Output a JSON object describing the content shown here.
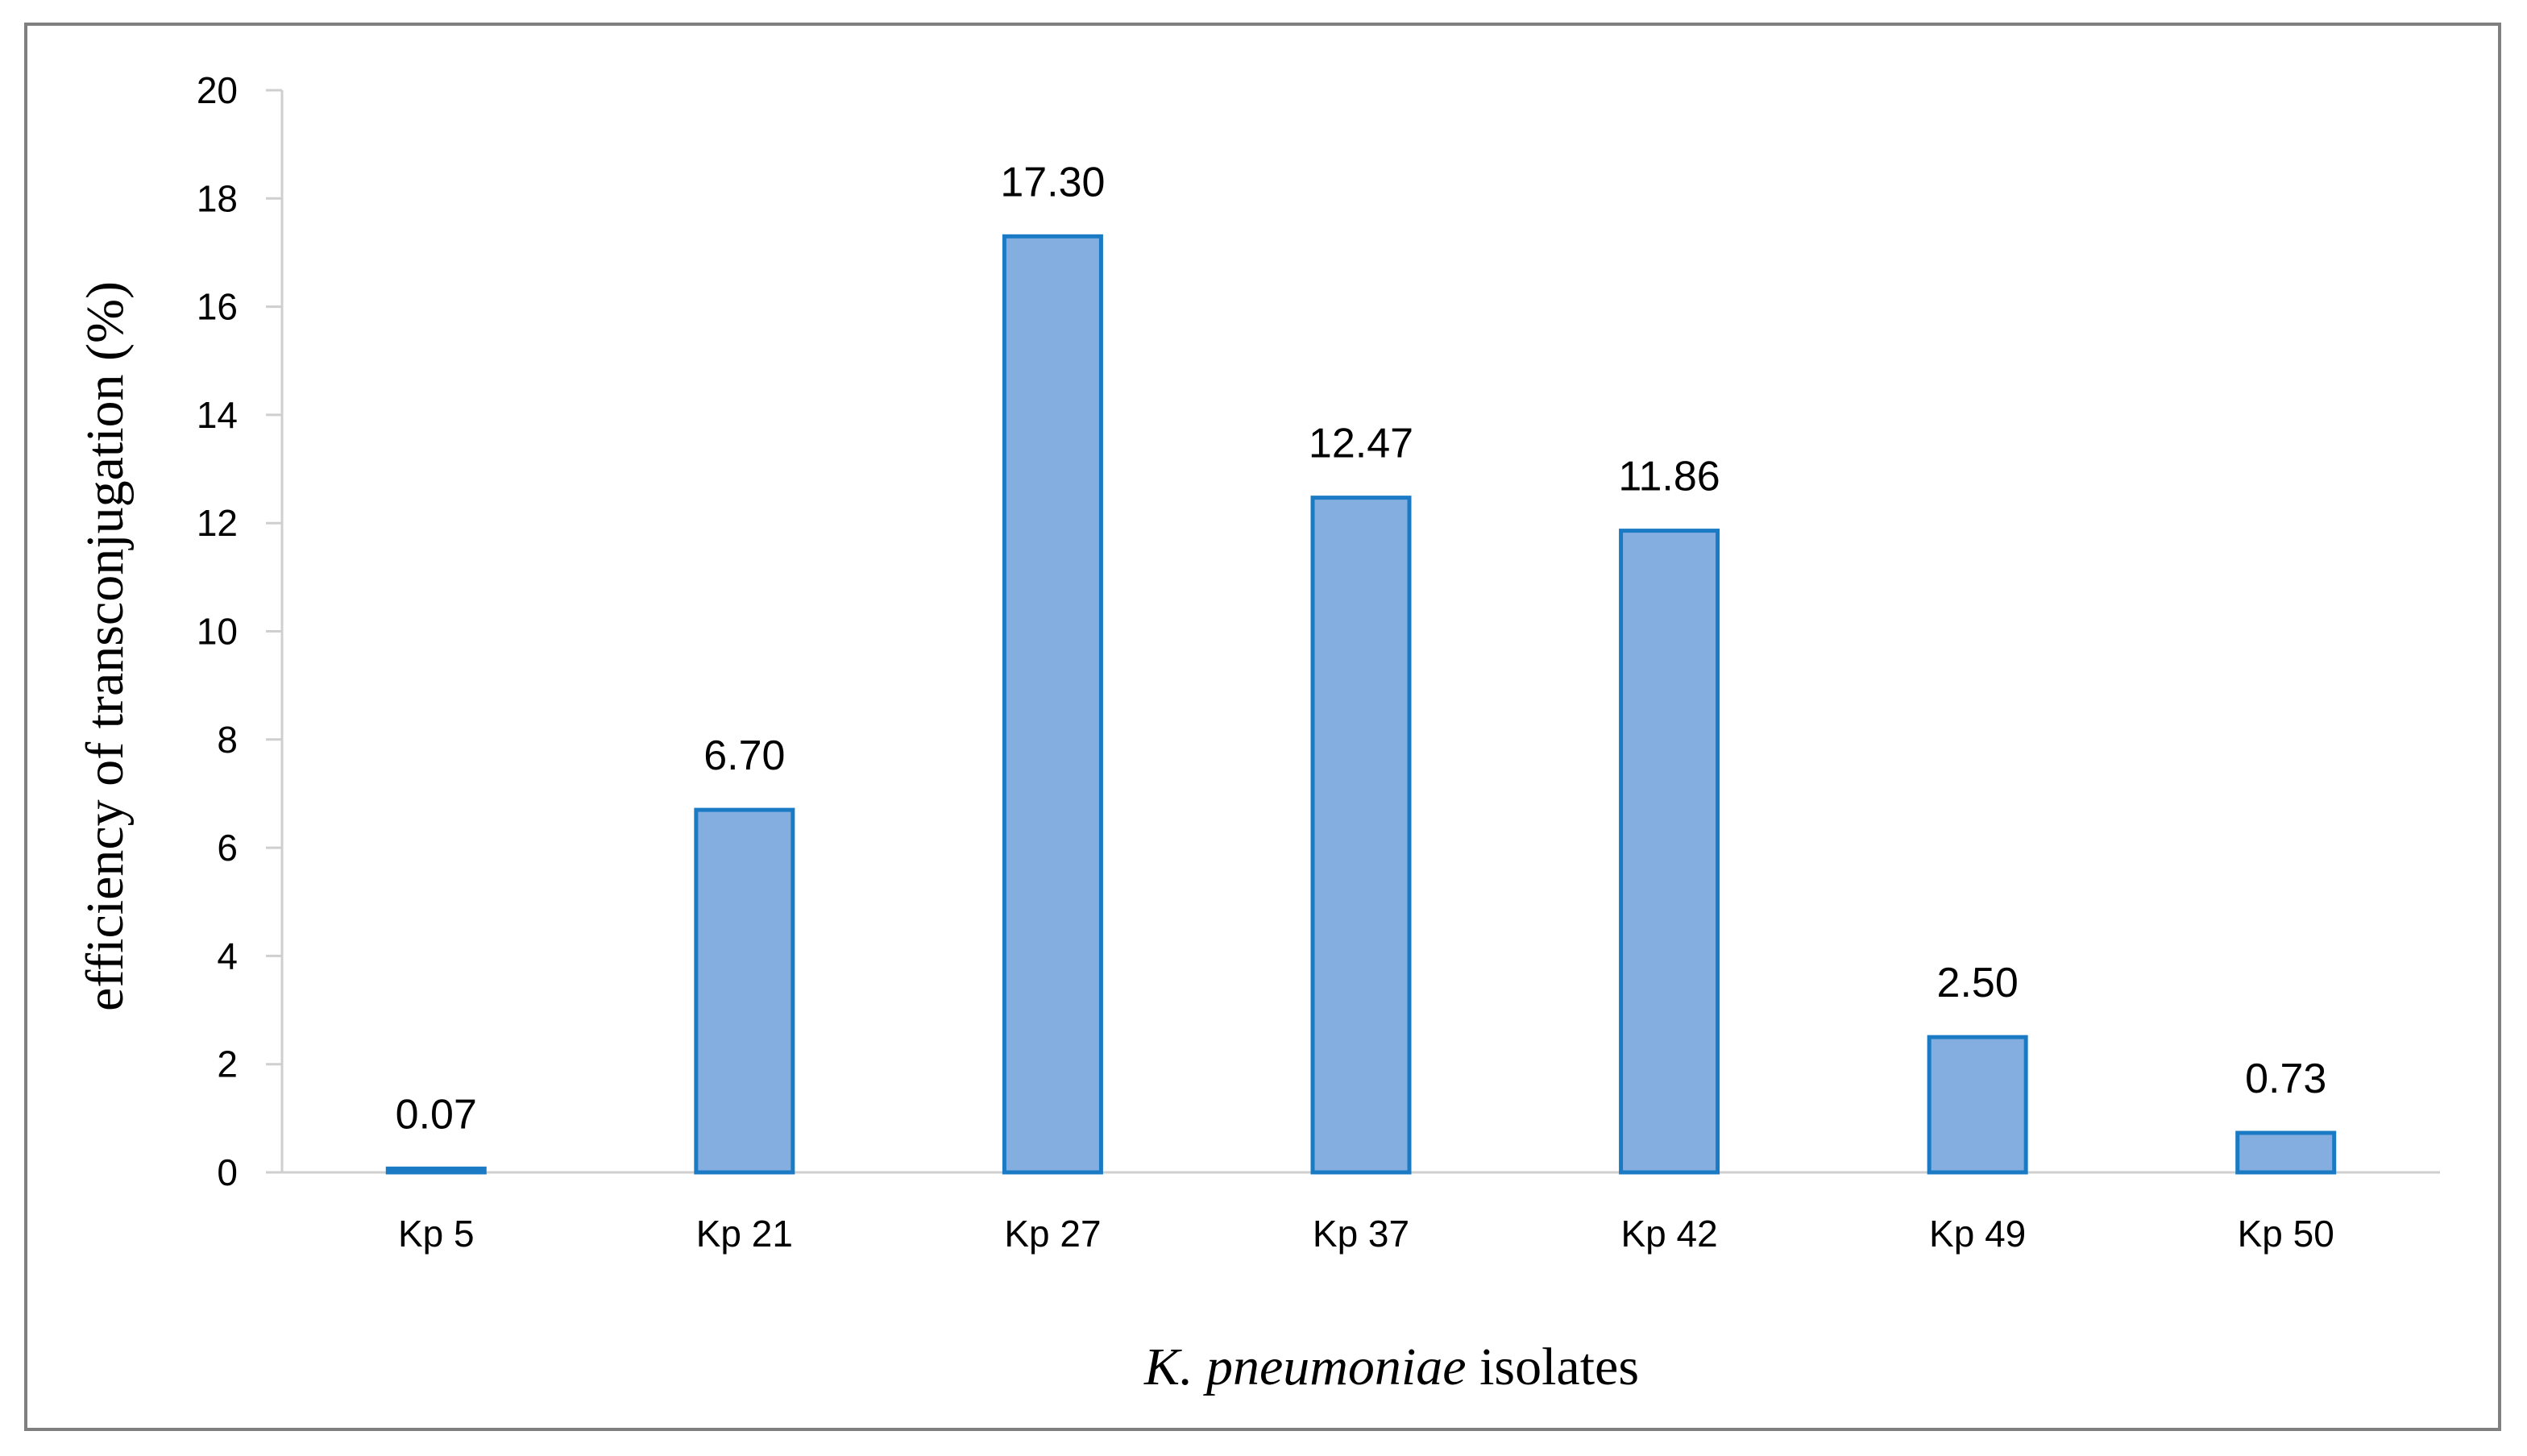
{
  "chart_data": {
    "type": "bar",
    "categories": [
      "Kp 5",
      "Kp 21",
      "Kp 27",
      "Kp 37",
      "Kp 42",
      "Kp 49",
      "Kp 50"
    ],
    "values": [
      0.07,
      6.7,
      17.3,
      12.47,
      11.86,
      2.5,
      0.73
    ],
    "data_labels": [
      "0.07",
      "6.70",
      "17.30",
      "12.47",
      "11.86",
      "2.50",
      "0.73"
    ],
    "ylabel": "efficiency of transconjugation (%)",
    "xlabel": {
      "italic_part": "K. pneumoniae",
      "rest": " isolates"
    },
    "ylim": [
      0,
      20
    ],
    "yticks": [
      0,
      2,
      4,
      6,
      8,
      10,
      12,
      14,
      16,
      18,
      20
    ],
    "grid": false,
    "legend": "none",
    "colors": {
      "bar_fill": "#85aee0",
      "bar_border": "#1a7bc4",
      "axis": "#cfcfcf",
      "frame": "#7f7f7f"
    }
  }
}
